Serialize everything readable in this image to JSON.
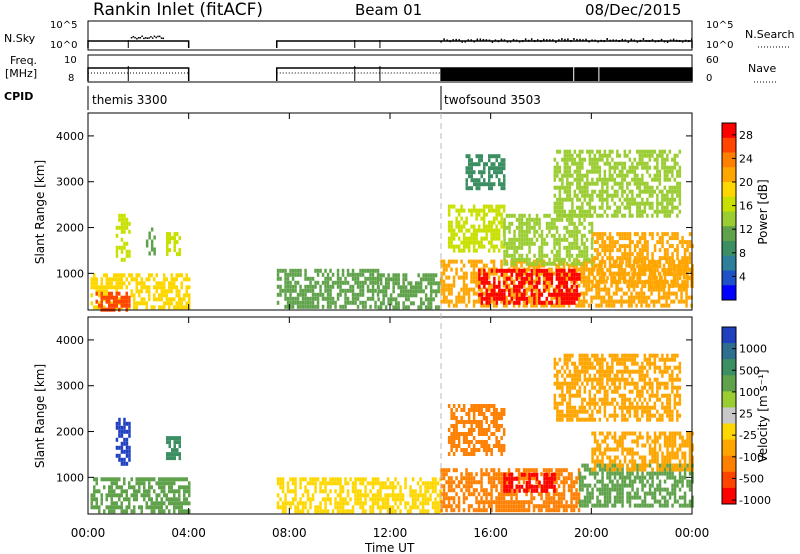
{
  "header": {
    "title": "Rankin Inlet (fitACF)",
    "beam": "Beam 01",
    "date": "08/Dec/2015"
  },
  "strips": {
    "nsky_label": "N.Sky",
    "nsearch_label": "N.Search",
    "nsky_ticks": [
      "10^5",
      "10^0"
    ],
    "nsearch_ticks": [
      "10^5",
      "10^0"
    ],
    "freq_label_1": "Freq.",
    "freq_label_2": "[MHz]",
    "freq_ticks": [
      "10",
      "8"
    ],
    "nave_label": "Nave",
    "nave_ticks": [
      "60",
      "0"
    ],
    "cpid_label": "CPID",
    "cpid_1": "themis 3300",
    "cpid_2": "twofsound 3503"
  },
  "chart_data": [
    {
      "type": "heatmap",
      "panel": "power",
      "ylabel": "Slant Range [km]",
      "xlabel": "Time UT",
      "x_ticks": [
        "00:00",
        "04:00",
        "08:00",
        "12:00",
        "16:00",
        "20:00",
        "00:00"
      ],
      "x_tick_hours": [
        0,
        4,
        8,
        12,
        16,
        20,
        24
      ],
      "xlim": [
        0,
        24
      ],
      "y_ticks": [
        1000,
        2000,
        3000,
        4000
      ],
      "ylim": [
        200,
        4500
      ],
      "colorbar": {
        "label": "Power [dB]",
        "ticks": [
          4,
          8,
          12,
          16,
          20,
          24,
          28
        ],
        "range": [
          0,
          30
        ],
        "colors": [
          "#0000ff",
          "#1e50c8",
          "#2e7f9a",
          "#3c8f63",
          "#5fa24b",
          "#9acd32",
          "#c8e000",
          "#ffd700",
          "#ffa500",
          "#ff7f00",
          "#ff4500",
          "#ff0000"
        ]
      },
      "regions": [
        {
          "t0": 0.1,
          "t1": 4.0,
          "r0": 250,
          "r1": 1000,
          "v": 18
        },
        {
          "t0": 0.3,
          "t1": 1.6,
          "r0": 250,
          "r1": 600,
          "v": 27
        },
        {
          "t0": 1.1,
          "t1": 1.6,
          "r0": 1300,
          "r1": 2300,
          "v": 17
        },
        {
          "t0": 2.3,
          "t1": 2.6,
          "r0": 1400,
          "r1": 2000,
          "v": 12
        },
        {
          "t0": 3.1,
          "t1": 3.6,
          "r0": 1400,
          "r1": 1900,
          "v": 17
        },
        {
          "t0": 7.5,
          "t1": 11.5,
          "r0": 250,
          "r1": 1100,
          "v": 12
        },
        {
          "t0": 11.5,
          "t1": 14.0,
          "r0": 250,
          "r1": 1000,
          "v": 10
        },
        {
          "t0": 14.0,
          "t1": 24.0,
          "r0": 300,
          "r1": 1300,
          "v": 20
        },
        {
          "t0": 15.5,
          "t1": 19.5,
          "r0": 400,
          "r1": 1100,
          "v": 28
        },
        {
          "t0": 20.0,
          "t1": 24.0,
          "r0": 700,
          "r1": 1900,
          "v": 22
        },
        {
          "t0": 14.3,
          "t1": 16.5,
          "r0": 1500,
          "r1": 2500,
          "v": 16
        },
        {
          "t0": 16.5,
          "t1": 20.0,
          "r0": 1200,
          "r1": 2300,
          "v": 14
        },
        {
          "t0": 18.5,
          "t1": 23.5,
          "r0": 2300,
          "r1": 3700,
          "v": 13
        },
        {
          "t0": 15.0,
          "t1": 16.5,
          "r0": 2900,
          "r1": 3600,
          "v": 8
        }
      ]
    },
    {
      "type": "heatmap",
      "panel": "velocity",
      "ylabel": "Slant Range [km]",
      "xlabel": "Time UT",
      "x_ticks": [
        "00:00",
        "04:00",
        "08:00",
        "12:00",
        "16:00",
        "20:00",
        "00:00"
      ],
      "x_tick_hours": [
        0,
        4,
        8,
        12,
        16,
        20,
        24
      ],
      "xlim": [
        0,
        24
      ],
      "y_ticks": [
        1000,
        2000,
        3000,
        4000
      ],
      "ylim": [
        200,
        4500
      ],
      "colorbar": {
        "label": "Velocity [m s⁻¹]",
        "ticks": [
          1000,
          500,
          100,
          25,
          -25,
          -100,
          -500,
          -1000
        ],
        "colors": [
          "#2040c0",
          "#2e6f8f",
          "#3c8f63",
          "#5fa24b",
          "#9acd32",
          "#c8c8c8",
          "#ffd700",
          "#ffa500",
          "#ff7f00",
          "#ff4500",
          "#ff0000"
        ]
      },
      "regions": [
        {
          "t0": 0.1,
          "t1": 4.0,
          "r0": 300,
          "r1": 1000,
          "v": 40
        },
        {
          "t0": 1.1,
          "t1": 1.6,
          "r0": 1300,
          "r1": 2300,
          "v": 800
        },
        {
          "t0": 3.1,
          "t1": 3.6,
          "r0": 1400,
          "r1": 1900,
          "v": 60
        },
        {
          "t0": 7.5,
          "t1": 14.0,
          "r0": 250,
          "r1": 1000,
          "v": -100
        },
        {
          "t0": 14.0,
          "t1": 19.5,
          "r0": 300,
          "r1": 1200,
          "v": -500
        },
        {
          "t0": 16.5,
          "t1": 18.5,
          "r0": 700,
          "r1": 1100,
          "v": -1000
        },
        {
          "t0": 19.5,
          "t1": 24.0,
          "r0": 400,
          "r1": 1300,
          "v": 30
        },
        {
          "t0": 20.0,
          "t1": 24.0,
          "r0": 1200,
          "r1": 2000,
          "v": -300
        },
        {
          "t0": 14.3,
          "t1": 16.5,
          "r0": 1500,
          "r1": 2600,
          "v": -500
        },
        {
          "t0": 18.5,
          "t1": 23.5,
          "r0": 2300,
          "r1": 3700,
          "v": -150
        }
      ]
    }
  ]
}
